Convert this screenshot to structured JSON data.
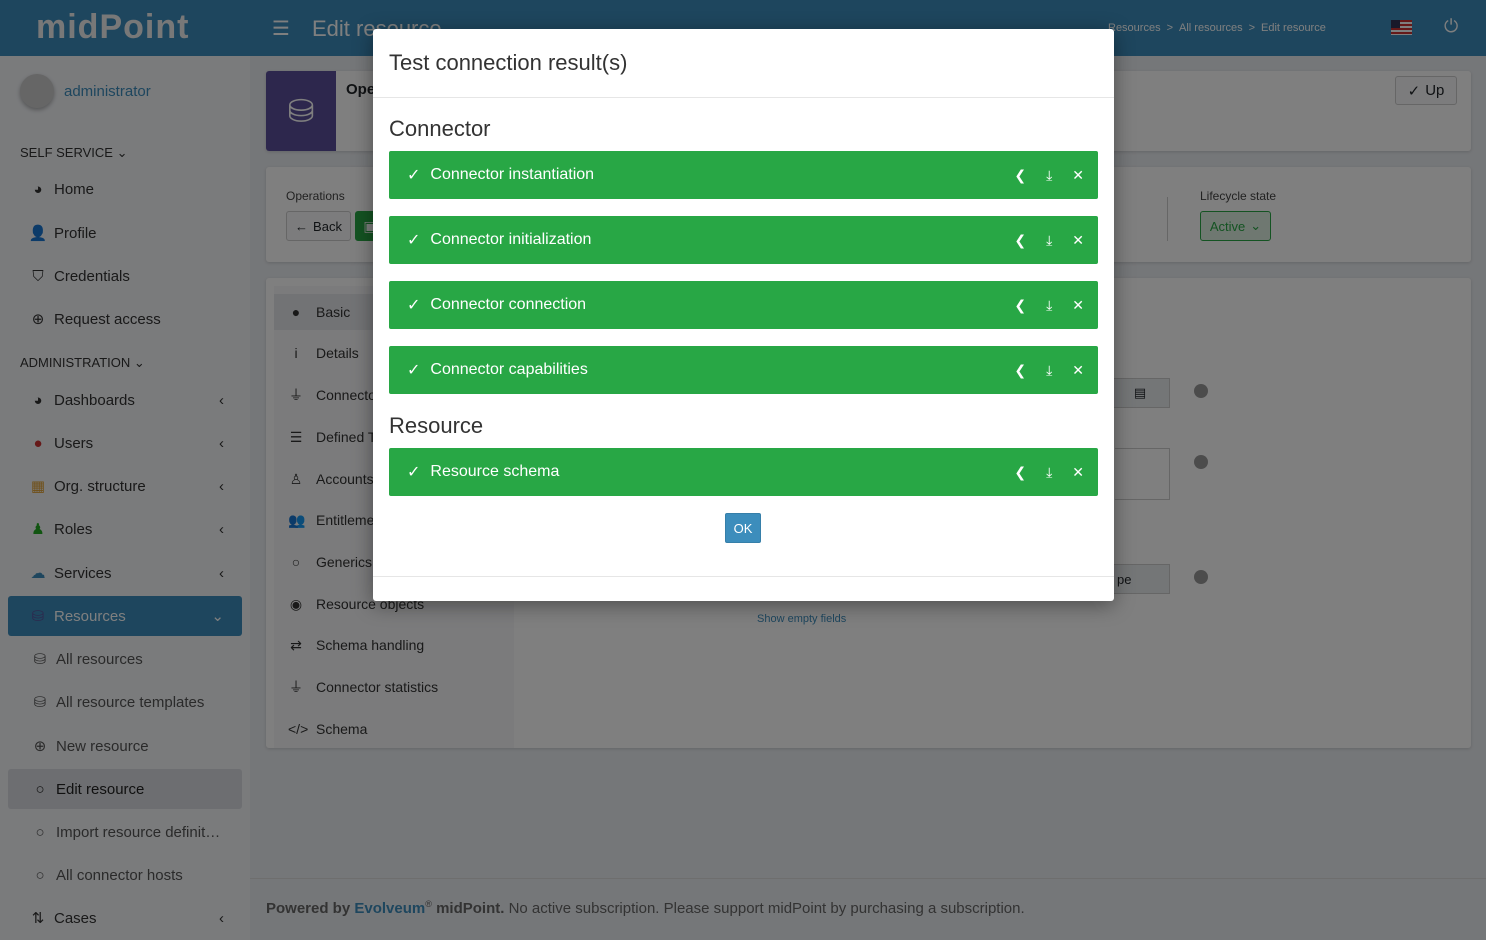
{
  "header": {
    "logo": "midPoint",
    "title": "Edit resource",
    "breadcrumbs": [
      "Resources",
      "All resources",
      "Edit resource"
    ]
  },
  "sidebar": {
    "user": "administrator",
    "self_service": "SELF SERVICE",
    "administration": "ADMINISTRATION",
    "self_items": [
      {
        "label": "Home",
        "icon": "dashboard-icon"
      },
      {
        "label": "Profile",
        "icon": "user-icon"
      },
      {
        "label": "Credentials",
        "icon": "shield-icon"
      },
      {
        "label": "Request access",
        "icon": "plus-circle-icon"
      }
    ],
    "admin_items": [
      {
        "label": "Dashboards",
        "icon": "dashboard-icon"
      },
      {
        "label": "Users",
        "icon": "user-icon"
      },
      {
        "label": "Org. structure",
        "icon": "building-icon"
      },
      {
        "label": "Roles",
        "icon": "roles-icon"
      },
      {
        "label": "Services",
        "icon": "cloud-icon"
      },
      {
        "label": "Resources",
        "icon": "database-icon"
      }
    ],
    "resource_items": [
      {
        "label": "All resources",
        "icon": "database-icon"
      },
      {
        "label": "All resource templates",
        "icon": "database-icon"
      },
      {
        "label": "New resource",
        "icon": "plus-circle-icon"
      },
      {
        "label": "Edit resource",
        "icon": "circle-icon"
      },
      {
        "label": "Import resource definit…",
        "icon": "circle-icon"
      },
      {
        "label": "All connector hosts",
        "icon": "circle-icon"
      }
    ],
    "cases": "Cases"
  },
  "main": {
    "summary_name": "Ope",
    "up_button": "Up",
    "operations_label": "Operations",
    "back_button": "Back",
    "lifecycle_label": "Lifecycle state",
    "lifecycle_value": "Active",
    "nav": [
      "Basic",
      "Details",
      "Connecto",
      "Defined T",
      "Accounts",
      "Entitleme",
      "Generics",
      "Resource objects",
      "Schema handling",
      "Connector statistics",
      "Schema"
    ],
    "partial_field": "pe",
    "show_empty": "Show empty fields"
  },
  "footer": {
    "powered": "Powered by",
    "brand": "Evolveum",
    "reg": "®",
    "product": "midPoint.",
    "message": "No active subscription. Please support midPoint by purchasing a subscription."
  },
  "modal": {
    "title": "Test connection result(s)",
    "connector_heading": "Connector",
    "resource_heading": "Resource",
    "connector_results": [
      {
        "label": "Connector instantiation",
        "status": "success"
      },
      {
        "label": "Connector initialization",
        "status": "success"
      },
      {
        "label": "Connector connection",
        "status": "success"
      },
      {
        "label": "Connector capabilities",
        "status": "success"
      }
    ],
    "resource_results": [
      {
        "label": "Resource schema",
        "status": "success"
      }
    ],
    "ok_button": "OK",
    "success_color": "#28a745"
  }
}
